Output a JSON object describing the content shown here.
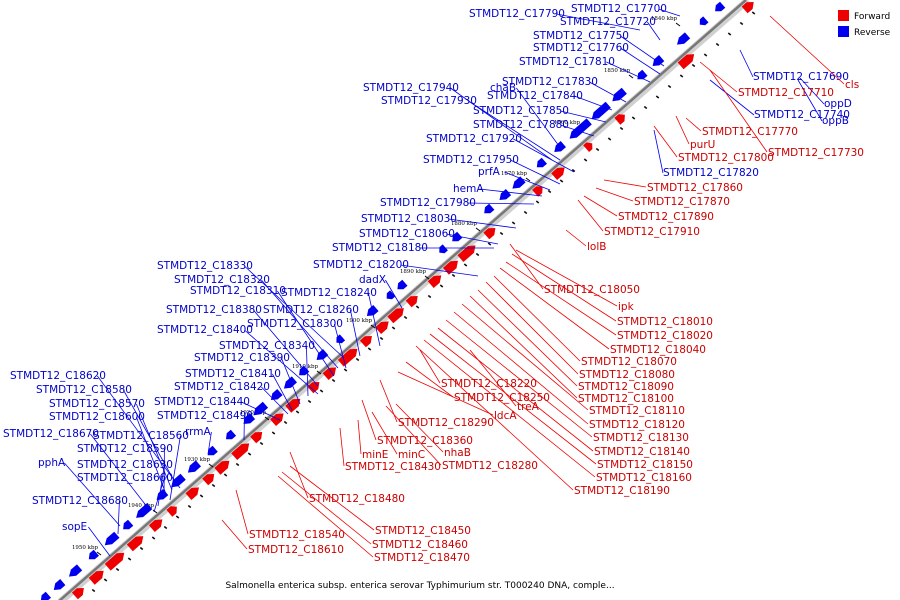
{
  "caption": "Salmonella enterica subsp. enterica serovar Typhimurium str. T000240 DNA, comple...",
  "legend": [
    {
      "label": "Forward",
      "color": "#ee0000"
    },
    {
      "label": "Reverse",
      "color": "#0000ee"
    }
  ],
  "colors": {
    "forward": "#ee0000",
    "reverse": "#0000ee",
    "backbone": "#888888"
  },
  "ticks": [
    "1840 kbp",
    "1850 kbp",
    "1860 kbp",
    "1870 kbp",
    "1880 kbp",
    "1890 kbp",
    "1900 kbp",
    "1910 kbp",
    "1920 kbp",
    "1930 kbp",
    "1940 kbp",
    "1950 kbp"
  ],
  "reverse_labels": [
    "STMDT12_C17790",
    "STMDT12_C17700",
    "STMDT12_C17720",
    "STMDT12_C17750",
    "STMDT12_C17760",
    "STMDT12_C17810",
    "STMDT12_C17830",
    "STMDT12_C17940",
    "chaB",
    "STMDT12_C17840",
    "STMDT12_C17930",
    "STMDT12_C17850",
    "STMDT12_C17880",
    "STMDT12_C17920",
    "STMDT12_C17950",
    "prfA",
    "hemA",
    "STMDT12_C17980",
    "STMDT12_C18030",
    "STMDT12_C18060",
    "STMDT12_C18180",
    "STMDT12_C18200",
    "dadX",
    "STMDT12_C18330",
    "STMDT12_C18320",
    "STMDT12_C18310",
    "STMDT12_C18240",
    "STMDT12_C18380",
    "STMDT12_C18260",
    "STMDT12_C18300",
    "STMDT12_C18400",
    "STMDT12_C18340",
    "STMDT12_C18390",
    "STMDT12_C18410",
    "STMDT12_C18620",
    "STMDT12_C18420",
    "STMDT12_C18580",
    "STMDT12_C18440",
    "STMDT12_C18570",
    "STMDT12_C18490",
    "STMDT12_C18600",
    "STMDT12_C18670",
    "STMDT12_C18560",
    "rrmA",
    "STMDT12_C18590",
    "pphA",
    "STMDT12_C18630",
    "STMDT12_C18660",
    "STMDT12_C18680",
    "sopE",
    "STMDT12_C17690",
    "STMDT12_C17740",
    "oppD",
    "oppB",
    "STMDT12_C17820"
  ],
  "forward_labels": [
    "cls",
    "STMDT12_C17710",
    "STMDT12_C17770",
    "purU",
    "STMDT12_C17730",
    "STMDT12_C17800",
    "STMDT12_C17860",
    "STMDT12_C17870",
    "STMDT12_C17890",
    "STMDT12_C17910",
    "lolB",
    "STMDT12_C18050",
    "ipk",
    "STMDT12_C18010",
    "STMDT12_C18020",
    "STMDT12_C18040",
    "STMDT12_C18070",
    "STMDT12_C18080",
    "STMDT12_C18090",
    "STMDT12_C18100",
    "STMDT12_C18110",
    "STMDT12_C18120",
    "STMDT12_C18130",
    "STMDT12_C18140",
    "STMDT12_C18150",
    "STMDT12_C18160",
    "STMDT12_C18190",
    "STMDT12_C18220",
    "STMDT12_C18250",
    "treA",
    "ldcA",
    "STMDT12_C18290",
    "minE",
    "minC",
    "STMDT12_C18360",
    "nhaB",
    "STMDT12_C18430",
    "STMDT12_C18280",
    "STMDT12_C18480",
    "STMDT12_C18450",
    "STMDT12_C18540",
    "STMDT12_C18460",
    "STMDT12_C18610",
    "STMDT12_C18470"
  ]
}
